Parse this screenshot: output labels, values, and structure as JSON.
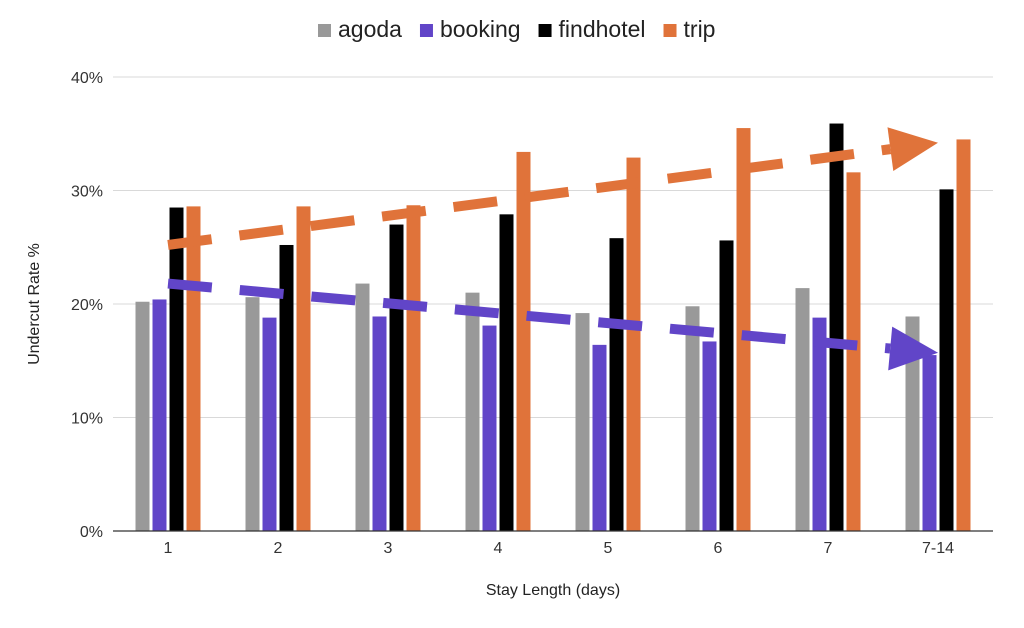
{
  "chart_data": {
    "type": "bar",
    "title": "",
    "xlabel": "Stay Length (days)",
    "ylabel": "Undercut Rate %",
    "ylim": [
      0,
      40
    ],
    "yticks": [
      "0%",
      "10%",
      "20%",
      "30%",
      "40%"
    ],
    "grid": true,
    "legend_position": "top-center",
    "categories": [
      "1",
      "2",
      "3",
      "4",
      "5",
      "6",
      "7",
      "7-14"
    ],
    "series": [
      {
        "name": "agoda",
        "color": "#999999",
        "values": [
          20.2,
          20.6,
          21.8,
          21.0,
          19.2,
          19.8,
          21.4,
          18.9
        ]
      },
      {
        "name": "booking",
        "color": "#6145c8",
        "values": [
          20.4,
          18.8,
          18.9,
          18.1,
          16.4,
          16.7,
          18.8,
          15.5
        ]
      },
      {
        "name": "findhotel",
        "color": "#000000",
        "values": [
          28.5,
          25.2,
          27.0,
          27.9,
          25.8,
          25.6,
          35.9,
          30.1
        ]
      },
      {
        "name": "trip",
        "color": "#e0733a",
        "values": [
          28.6,
          28.6,
          28.7,
          33.4,
          32.9,
          35.5,
          31.6,
          34.5
        ]
      }
    ],
    "annotations": [
      {
        "kind": "dashed-trend-arrow",
        "series": "trip",
        "from": {
          "category": "1",
          "value": 25.2
        },
        "to": {
          "category": "7-14",
          "value": 34.2
        }
      },
      {
        "kind": "dashed-trend-arrow",
        "series": "booking",
        "from": {
          "category": "1",
          "value": 21.8
        },
        "to": {
          "category": "7-14",
          "value": 15.7
        }
      }
    ]
  }
}
